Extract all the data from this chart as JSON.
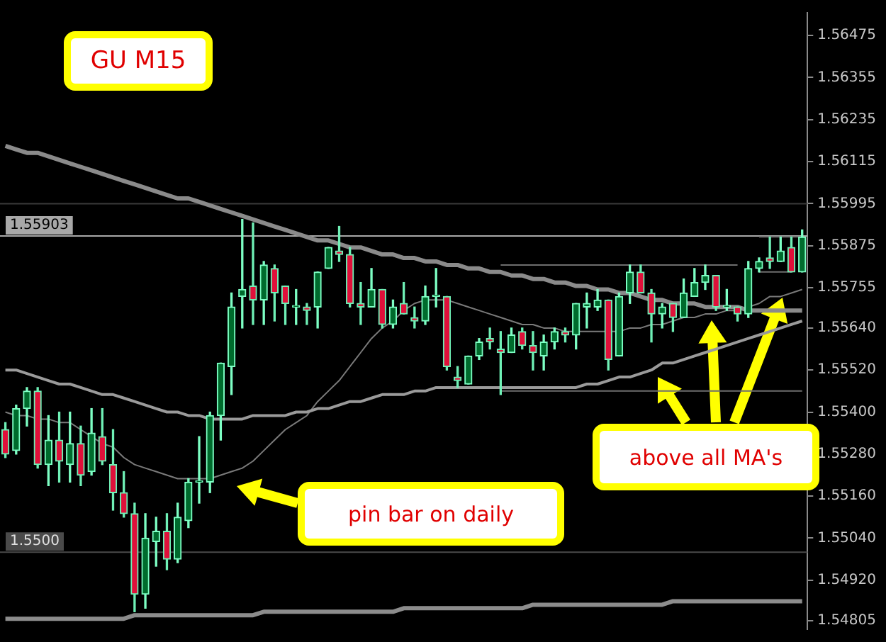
{
  "chart_data": {
    "type": "candlestick",
    "categories": [
      null,
      null,
      null,
      null,
      null,
      null,
      null,
      null,
      null,
      null,
      null,
      null,
      null,
      null,
      null,
      null,
      null,
      null,
      null,
      null,
      null,
      null,
      null,
      null,
      null,
      null,
      null,
      null,
      null,
      null,
      null,
      null,
      null,
      null,
      null,
      null,
      null,
      null,
      null,
      null,
      null,
      null,
      null,
      null,
      null,
      null,
      null,
      null,
      null,
      null,
      null,
      null,
      null,
      null,
      null,
      null,
      null,
      null,
      null,
      null,
      null,
      null,
      null,
      null,
      null,
      null,
      null,
      null,
      null,
      null,
      null,
      null,
      null,
      null,
      null
    ],
    "ohlc": [
      [
        1.5535,
        1.5537,
        1.5527,
        1.5528
      ],
      [
        1.5529,
        1.5542,
        1.5528,
        1.5541
      ],
      [
        1.5541,
        1.5547,
        1.5536,
        1.5546
      ],
      [
        1.5546,
        1.5547,
        1.5524,
        1.5525
      ],
      [
        1.5525,
        1.5539,
        1.5519,
        1.5532
      ],
      [
        1.5532,
        1.554,
        1.552,
        1.5526
      ],
      [
        1.5525,
        1.554,
        1.552,
        1.5531
      ],
      [
        1.5531,
        1.5536,
        1.5519,
        1.5522
      ],
      [
        1.5523,
        1.5541,
        1.5522,
        1.5534
      ],
      [
        1.5533,
        1.5541,
        1.5525,
        1.5526
      ],
      [
        1.5525,
        1.5535,
        1.5512,
        1.5517
      ],
      [
        1.5517,
        1.5523,
        1.551,
        1.5511
      ],
      [
        1.5511,
        1.5514,
        1.5483,
        1.5488
      ],
      [
        1.5488,
        1.5511,
        1.5484,
        1.5504
      ],
      [
        1.5503,
        1.551,
        1.5496,
        1.5506
      ],
      [
        1.5506,
        1.5511,
        1.5495,
        1.5498
      ],
      [
        1.5498,
        1.5514,
        1.5497,
        1.551
      ],
      [
        1.5509,
        1.5521,
        1.5507,
        1.552
      ],
      [
        1.552,
        1.5533,
        1.5514,
        1.552
      ],
      [
        1.552,
        1.554,
        1.5517,
        1.5539
      ],
      [
        1.5539,
        1.5554,
        1.5532,
        1.5554
      ],
      [
        1.5553,
        1.5574,
        1.5545,
        1.557
      ],
      [
        1.5573,
        1.5595,
        1.5564,
        1.5575
      ],
      [
        1.5576,
        1.5594,
        1.5565,
        1.5572
      ],
      [
        1.5572,
        1.5583,
        1.5565,
        1.5582
      ],
      [
        1.5581,
        1.5582,
        1.5566,
        1.5574
      ],
      [
        1.5576,
        1.5576,
        1.5565,
        1.5571
      ],
      [
        1.557,
        1.5575,
        1.5565,
        1.557
      ],
      [
        1.557,
        1.5571,
        1.5565,
        1.5569
      ],
      [
        1.557,
        1.558,
        1.5564,
        1.558
      ],
      [
        1.5581,
        1.5587,
        1.5581,
        1.5587
      ],
      [
        1.5586,
        1.5593,
        1.5583,
        1.5585
      ],
      [
        1.5585,
        1.5587,
        1.557,
        1.5571
      ],
      [
        1.5571,
        1.5577,
        1.5565,
        1.557
      ],
      [
        1.557,
        1.5581,
        1.557,
        1.5575
      ],
      [
        1.5575,
        1.5575,
        1.5564,
        1.5565
      ],
      [
        1.5565,
        1.5572,
        1.5564,
        1.557
      ],
      [
        1.5571,
        1.5577,
        1.5568,
        1.5568
      ],
      [
        1.5567,
        1.557,
        1.5564,
        1.5566
      ],
      [
        1.5566,
        1.5576,
        1.5565,
        1.5573
      ],
      [
        1.5573,
        1.5581,
        1.557,
        1.5573
      ],
      [
        1.5573,
        1.5573,
        1.5552,
        1.5553
      ],
      [
        1.555,
        1.5553,
        1.5547,
        1.5549
      ],
      [
        1.5548,
        1.5556,
        1.5548,
        1.5556
      ],
      [
        1.5556,
        1.5561,
        1.5555,
        1.556
      ],
      [
        1.5561,
        1.5564,
        1.5558,
        1.556
      ],
      [
        1.5558,
        1.5563,
        1.5545,
        1.5557
      ],
      [
        1.5557,
        1.5564,
        1.5557,
        1.5562
      ],
      [
        1.5563,
        1.5564,
        1.5558,
        1.5559
      ],
      [
        1.5559,
        1.5563,
        1.5552,
        1.5557
      ],
      [
        1.5556,
        1.5562,
        1.5552,
        1.556
      ],
      [
        1.556,
        1.5564,
        1.5558,
        1.5563
      ],
      [
        1.5563,
        1.5564,
        1.556,
        1.5562
      ],
      [
        1.5562,
        1.5571,
        1.5558,
        1.5571
      ],
      [
        1.557,
        1.5574,
        1.5564,
        1.5571
      ],
      [
        1.557,
        1.5575,
        1.5569,
        1.5572
      ],
      [
        1.5572,
        1.5572,
        1.5552,
        1.5555
      ],
      [
        1.5556,
        1.5574,
        1.5556,
        1.5573
      ],
      [
        1.5574,
        1.5582,
        1.5571,
        1.558
      ],
      [
        1.558,
        1.5582,
        1.5574,
        1.5574
      ],
      [
        1.5574,
        1.5575,
        1.556,
        1.5568
      ],
      [
        1.5568,
        1.5571,
        1.5564,
        1.557
      ],
      [
        1.5571,
        1.5571,
        1.5563,
        1.5567
      ],
      [
        1.5567,
        1.5578,
        1.5567,
        1.5574
      ],
      [
        1.5573,
        1.5581,
        1.5573,
        1.5577
      ],
      [
        1.5577,
        1.5582,
        1.5575,
        1.5579
      ],
      [
        1.5579,
        1.5579,
        1.5569,
        1.557
      ],
      [
        1.557,
        1.5575,
        1.5569,
        1.557
      ],
      [
        1.557,
        1.557,
        1.5566,
        1.5568
      ],
      [
        1.5568,
        1.5583,
        1.5567,
        1.5581
      ],
      [
        1.5581,
        1.5584,
        1.558,
        1.5583
      ],
      [
        1.5584,
        1.559,
        1.5581,
        1.5583
      ],
      [
        1.5583,
        1.559,
        1.5583,
        1.5586
      ],
      [
        1.5587,
        1.559,
        1.558,
        1.558
      ],
      [
        1.558,
        1.5592,
        1.558,
        1.559
      ]
    ],
    "series": [
      {
        "type": "line",
        "color": "#8a8a8a",
        "values": [
          1.5616,
          1.5615,
          1.5614,
          1.5614,
          1.5613,
          1.5612,
          1.5611,
          1.561,
          1.5609,
          1.5608,
          1.5607,
          1.5606,
          1.5605,
          1.5604,
          1.5603,
          1.5602,
          1.5601,
          1.5601,
          1.56,
          1.5599,
          1.5598,
          1.5597,
          1.5596,
          1.5595,
          1.5594,
          1.5593,
          1.5592,
          1.5591,
          1.559,
          1.5589,
          1.5589,
          1.5588,
          1.5587,
          1.5587,
          1.5586,
          1.5585,
          1.5585,
          1.5584,
          1.5584,
          1.5583,
          1.5583,
          1.5582,
          1.5582,
          1.5581,
          1.5581,
          1.558,
          1.558,
          1.5579,
          1.5579,
          1.5578,
          1.5578,
          1.5577,
          1.5577,
          1.5576,
          1.5576,
          1.5575,
          1.5575,
          1.5574,
          1.5574,
          1.5573,
          1.5572,
          1.5572,
          1.5571,
          1.5571,
          1.5571,
          1.557,
          1.557,
          1.557,
          1.557,
          1.5569,
          1.5569,
          1.5569,
          1.5569,
          1.5569,
          1.5569
        ]
      },
      {
        "type": "line",
        "color": "#9a9a9a",
        "values": [
          1.5552,
          1.5552,
          1.5551,
          1.555,
          1.5549,
          1.5548,
          1.5548,
          1.5547,
          1.5546,
          1.5545,
          1.5545,
          1.5544,
          1.5543,
          1.5542,
          1.5541,
          1.554,
          1.554,
          1.5539,
          1.5539,
          1.5538,
          1.5538,
          1.5538,
          1.5538,
          1.5539,
          1.5539,
          1.5539,
          1.5539,
          1.554,
          1.554,
          1.5541,
          1.5541,
          1.5542,
          1.5543,
          1.5543,
          1.5544,
          1.5545,
          1.5545,
          1.5545,
          1.5546,
          1.5546,
          1.5547,
          1.5547,
          1.5547,
          1.5547,
          1.5547,
          1.5547,
          1.5547,
          1.5547,
          1.5547,
          1.5547,
          1.5547,
          1.5547,
          1.5547,
          1.5547,
          1.5548,
          1.5548,
          1.5549,
          1.555,
          1.555,
          1.5551,
          1.5552,
          1.5554,
          1.5554,
          1.5555,
          1.5556,
          1.5557,
          1.5558,
          1.5559,
          1.556,
          1.5561,
          1.5562,
          1.5563,
          1.5564,
          1.5565,
          1.5566
        ]
      },
      {
        "type": "line",
        "color": "#7a7a7a",
        "values": [
          1.554,
          1.5539,
          1.5539,
          1.5538,
          1.5538,
          1.5537,
          1.5537,
          1.5535,
          1.5533,
          1.5531,
          1.553,
          1.5527,
          1.5525,
          1.5524,
          1.5523,
          1.5522,
          1.5521,
          1.5521,
          1.5521,
          1.5521,
          1.5522,
          1.5523,
          1.5524,
          1.5526,
          1.5529,
          1.5532,
          1.5535,
          1.5537,
          1.5539,
          1.5543,
          1.5546,
          1.5549,
          1.5553,
          1.5557,
          1.5561,
          1.5564,
          1.5566,
          1.5569,
          1.5571,
          1.5572,
          1.5572,
          1.5572,
          1.5571,
          1.557,
          1.5569,
          1.5568,
          1.5567,
          1.5566,
          1.5565,
          1.5565,
          1.5564,
          1.5564,
          1.5563,
          1.5563,
          1.5563,
          1.5563,
          1.5563,
          1.5563,
          1.5564,
          1.5564,
          1.5565,
          1.5565,
          1.5566,
          1.5567,
          1.5567,
          1.5568,
          1.5568,
          1.5569,
          1.5569,
          1.557,
          1.5571,
          1.5573,
          1.5573,
          1.5574,
          1.5575
        ]
      },
      {
        "type": "line",
        "color": "#8c8c8c",
        "values": [
          1.5481,
          1.5481,
          1.5481,
          1.5481,
          1.5481,
          1.5481,
          1.5481,
          1.5481,
          1.5481,
          1.5481,
          1.5481,
          1.5481,
          1.5482,
          1.5482,
          1.5482,
          1.5482,
          1.5482,
          1.5482,
          1.5482,
          1.5482,
          1.5482,
          1.5482,
          1.5482,
          1.5482,
          1.5483,
          1.5483,
          1.5483,
          1.5483,
          1.5483,
          1.5483,
          1.5483,
          1.5483,
          1.5483,
          1.5483,
          1.5483,
          1.5483,
          1.5483,
          1.5484,
          1.5484,
          1.5484,
          1.5484,
          1.5484,
          1.5484,
          1.5484,
          1.5484,
          1.5484,
          1.5484,
          1.5484,
          1.5484,
          1.5485,
          1.5485,
          1.5485,
          1.5485,
          1.5485,
          1.5485,
          1.5485,
          1.5485,
          1.5485,
          1.5485,
          1.5485,
          1.5485,
          1.5485,
          1.5486,
          1.5486,
          1.5486,
          1.5486,
          1.5486,
          1.5486,
          1.5486,
          1.5486,
          1.5486,
          1.5486,
          1.5486,
          1.5486,
          1.5486
        ]
      },
      {
        "type": "line",
        "color": "#6e6e6e",
        "values": [
          null,
          null,
          null,
          null,
          null,
          null,
          null,
          null,
          null,
          null,
          null,
          null,
          null,
          null,
          null,
          null,
          null,
          null,
          null,
          null,
          null,
          null,
          null,
          null,
          null,
          null,
          null,
          null,
          null,
          null,
          null,
          null,
          null,
          null,
          null,
          null,
          null,
          null,
          null,
          null,
          null,
          null,
          null,
          null,
          null,
          null,
          1.5582,
          1.5582,
          1.5582,
          1.5582,
          1.5582,
          1.5582,
          1.5582,
          1.5582,
          1.5582,
          1.5582,
          1.5582,
          1.5582,
          1.5582,
          1.5582,
          1.5582,
          1.5582,
          1.5582,
          1.5582,
          1.5582,
          1.5582,
          1.5582,
          1.5582,
          1.5582,
          null,
          null,
          null,
          null,
          null,
          null
        ]
      },
      {
        "type": "line",
        "color": "#6e6e6e",
        "values": [
          null,
          null,
          null,
          null,
          null,
          null,
          null,
          null,
          null,
          null,
          null,
          null,
          null,
          null,
          null,
          null,
          null,
          null,
          null,
          null,
          null,
          null,
          null,
          null,
          null,
          null,
          null,
          null,
          null,
          null,
          null,
          null,
          null,
          null,
          null,
          null,
          null,
          null,
          null,
          null,
          null,
          null,
          null,
          null,
          null,
          null,
          1.5546,
          1.5546,
          1.5546,
          1.5546,
          1.5546,
          1.5546,
          1.5546,
          1.5546,
          1.5546,
          1.5546,
          1.5546,
          1.5546,
          1.5546,
          1.5546,
          1.5546,
          1.5546,
          1.5546,
          1.5546,
          1.5546,
          1.5546,
          1.5546,
          1.5546,
          1.5546,
          1.5546,
          1.5546,
          1.5546,
          1.5546,
          1.5546,
          1.5546
        ]
      },
      {
        "type": "line",
        "color": "#6e6e6e",
        "values": [
          null,
          null,
          null,
          null,
          null,
          null,
          null,
          null,
          null,
          null,
          null,
          null,
          null,
          null,
          null,
          null,
          null,
          null,
          null,
          null,
          null,
          null,
          null,
          null,
          null,
          null,
          null,
          null,
          null,
          null,
          null,
          null,
          null,
          null,
          null,
          null,
          null,
          null,
          null,
          null,
          null,
          null,
          null,
          null,
          null,
          null,
          null,
          null,
          null,
          null,
          null,
          null,
          null,
          null,
          null,
          null,
          null,
          null,
          null,
          null,
          null,
          null,
          null,
          null,
          null,
          null,
          null,
          null,
          null,
          null,
          1.559,
          1.559,
          1.559,
          1.559,
          1.559
        ]
      },
      {
        "type": "line",
        "color": "#6e6e6e",
        "values": [
          null,
          null,
          null,
          null,
          null,
          null,
          null,
          null,
          null,
          null,
          null,
          null,
          null,
          null,
          null,
          null,
          null,
          null,
          null,
          null,
          null,
          null,
          null,
          null,
          null,
          null,
          null,
          null,
          null,
          null,
          null,
          null,
          null,
          null,
          null,
          null,
          null,
          null,
          null,
          null,
          null,
          null,
          null,
          null,
          null,
          null,
          null,
          null,
          null,
          null,
          null,
          null,
          null,
          null,
          null,
          null,
          null,
          null,
          null,
          null,
          null,
          null,
          null,
          null,
          null,
          null,
          null,
          null,
          null,
          null,
          1.558,
          1.558,
          1.558,
          1.558,
          null
        ]
      }
    ],
    "ylim": [
      1.5478,
      1.5654
    ],
    "yticks": [
      1.56475,
      1.56355,
      1.56235,
      1.56115,
      1.55995,
      1.55875,
      1.55755,
      {
        "value": 1.5564,
        "label": "1.55640"
      },
      {
        "value": 1.5552,
        "label": "1.55520"
      },
      {
        "value": 1.554,
        "label": "1.55400"
      },
      {
        "value": 1.5528,
        "label": "1.55280"
      },
      {
        "value": 1.5516,
        "label": "1.55160"
      },
      {
        "value": 1.5504,
        "label": "1.55040"
      },
      {
        "value": 1.5492,
        "label": "1.54920"
      },
      1.54805
    ],
    "ref_lines": [
      {
        "axis": "y",
        "value": 1.55995,
        "color": "#3a3a3a"
      },
      {
        "axis": "y",
        "value": 1.55903,
        "label": "1.55903",
        "color": "#a8a8a8"
      },
      {
        "axis": "y",
        "value": 1.55,
        "label": "1.5500",
        "color": "#4a4a4a"
      }
    ],
    "annotations": [
      "GU M15",
      "pin bar on daily",
      "above all MA's"
    ],
    "grid": false,
    "legend": false,
    "tick_labels": "y"
  }
}
